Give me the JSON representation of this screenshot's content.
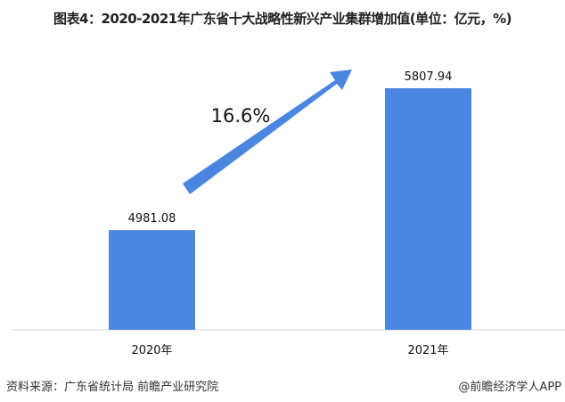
{
  "title": "图表4：2020-2021年广东省十大战略性新兴产业集群增加值(单位：亿元，%)",
  "source": "资料来源：广东省统计局 前瞻产业研究院",
  "credit": "@前瞻经济学人APP",
  "chart_data": {
    "type": "bar",
    "categories": [
      "2020年",
      "2021年"
    ],
    "values": [
      4981.08,
      5807.94
    ],
    "value_labels": [
      "4981.08",
      "5807.94"
    ],
    "ylim": [
      4400,
      6000
    ],
    "grid": false,
    "bar_color": "#4a86e0",
    "annotation": {
      "text": "16.6%",
      "type": "growth-arrow",
      "color": "#4a86e0"
    }
  }
}
